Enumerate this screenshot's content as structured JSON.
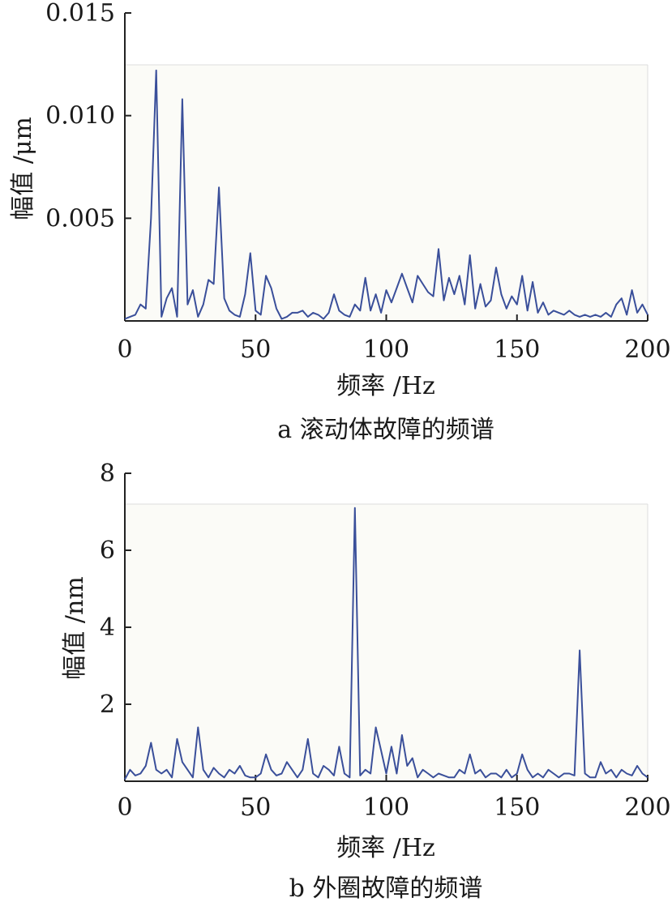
{
  "chart_data": [
    {
      "type": "line",
      "caption": "a 滚动体故障的频谱",
      "xlabel": "频率 /Hz",
      "ylabel": "幅值 /μm",
      "xlim": [
        0,
        200
      ],
      "ylim": [
        0,
        0.015
      ],
      "xticks": [
        "0",
        "50",
        "100",
        "150",
        "200"
      ],
      "yticks": [
        "0.005",
        "0.010",
        "0.015"
      ],
      "y_tick_values": [
        0.005,
        0.01,
        0.015
      ],
      "x_tick_values": [
        0,
        50,
        100,
        150,
        200
      ],
      "grid": false,
      "line_color": "#3a4f9a",
      "series": [
        {
          "x": [
            0,
            2,
            4,
            6,
            8,
            10,
            12,
            14,
            16,
            18,
            20,
            22,
            24,
            26,
            28,
            30,
            32,
            34,
            36,
            38,
            40,
            42,
            44,
            46,
            48,
            50,
            52,
            54,
            56,
            58,
            60,
            62,
            64,
            66,
            68,
            70,
            72,
            74,
            76,
            78,
            80,
            82,
            84,
            86,
            88,
            90,
            92,
            94,
            96,
            98,
            100,
            102,
            104,
            106,
            108,
            110,
            112,
            114,
            116,
            118,
            120,
            122,
            124,
            126,
            128,
            130,
            132,
            134,
            136,
            138,
            140,
            142,
            144,
            146,
            148,
            150,
            152,
            154,
            156,
            158,
            160,
            162,
            164,
            166,
            168,
            170,
            172,
            174,
            176,
            178,
            180,
            182,
            184,
            186,
            188,
            190,
            192,
            194,
            196,
            198,
            200
          ],
          "values": [
            0.0001,
            0.0002,
            0.0003,
            0.0008,
            0.0006,
            0.005,
            0.0122,
            0.0002,
            0.0011,
            0.0016,
            0.0002,
            0.0108,
            0.0008,
            0.0015,
            0.0002,
            0.0008,
            0.002,
            0.0018,
            0.0065,
            0.0011,
            0.0005,
            0.0003,
            0.0002,
            0.0013,
            0.0033,
            0.0005,
            0.0003,
            0.0022,
            0.0016,
            0.0006,
            0.0001,
            0.0002,
            0.0004,
            0.0004,
            0.0005,
            0.0002,
            0.0004,
            0.0003,
            0.0001,
            0.0004,
            0.0013,
            0.0005,
            0.0003,
            0.0002,
            0.0008,
            0.0005,
            0.0021,
            0.0005,
            0.0013,
            0.0004,
            0.0015,
            0.0009,
            0.0016,
            0.0023,
            0.0016,
            0.0009,
            0.0022,
            0.0018,
            0.0014,
            0.0012,
            0.0035,
            0.001,
            0.0021,
            0.0013,
            0.0022,
            0.0008,
            0.0032,
            0.0006,
            0.0018,
            0.0007,
            0.001,
            0.0026,
            0.0013,
            0.0006,
            0.0012,
            0.0008,
            0.0022,
            0.0005,
            0.0019,
            0.0004,
            0.0009,
            0.0003,
            0.0005,
            0.0004,
            0.0003,
            0.0005,
            0.0003,
            0.0002,
            0.0003,
            0.0002,
            0.0003,
            0.0002,
            0.0004,
            0.0002,
            0.0008,
            0.0011,
            0.0003,
            0.0015,
            0.0004,
            0.0008,
            0.0003
          ]
        }
      ]
    },
    {
      "type": "line",
      "caption": "b 外圈故障的频谱",
      "xlabel": "频率 /Hz",
      "ylabel": "幅值 /nm",
      "xlim": [
        0,
        200
      ],
      "ylim": [
        0,
        8
      ],
      "xticks": [
        "0",
        "50",
        "100",
        "150",
        "200"
      ],
      "yticks": [
        "2",
        "4",
        "6",
        "8"
      ],
      "y_tick_values": [
        2,
        4,
        6,
        8
      ],
      "x_tick_values": [
        0,
        50,
        100,
        150,
        200
      ],
      "grid": false,
      "line_color": "#3a4f9a",
      "series": [
        {
          "x": [
            0,
            2,
            4,
            6,
            8,
            10,
            12,
            14,
            16,
            18,
            20,
            22,
            24,
            26,
            28,
            30,
            32,
            34,
            36,
            38,
            40,
            42,
            44,
            46,
            48,
            50,
            52,
            54,
            56,
            58,
            60,
            62,
            64,
            66,
            68,
            70,
            72,
            74,
            76,
            78,
            80,
            82,
            84,
            86,
            88,
            90,
            92,
            94,
            96,
            98,
            100,
            102,
            104,
            106,
            108,
            110,
            112,
            114,
            116,
            118,
            120,
            122,
            124,
            126,
            128,
            130,
            132,
            134,
            136,
            138,
            140,
            142,
            144,
            146,
            148,
            150,
            152,
            154,
            156,
            158,
            160,
            162,
            164,
            166,
            168,
            170,
            172,
            174,
            176,
            178,
            180,
            182,
            184,
            186,
            188,
            190,
            192,
            194,
            196,
            198,
            200
          ],
          "values": [
            0.05,
            0.3,
            0.15,
            0.2,
            0.4,
            1.0,
            0.3,
            0.2,
            0.3,
            0.1,
            1.1,
            0.5,
            0.3,
            0.1,
            1.4,
            0.3,
            0.1,
            0.35,
            0.2,
            0.1,
            0.3,
            0.2,
            0.4,
            0.15,
            0.1,
            0.1,
            0.2,
            0.7,
            0.3,
            0.15,
            0.2,
            0.5,
            0.3,
            0.1,
            0.3,
            1.1,
            0.2,
            0.1,
            0.4,
            0.3,
            0.15,
            0.9,
            0.2,
            0.1,
            7.1,
            0.15,
            0.3,
            0.2,
            1.4,
            0.8,
            0.2,
            0.9,
            0.2,
            1.2,
            0.4,
            0.6,
            0.1,
            0.3,
            0.2,
            0.1,
            0.2,
            0.15,
            0.1,
            0.1,
            0.3,
            0.2,
            0.7,
            0.2,
            0.3,
            0.1,
            0.2,
            0.2,
            0.1,
            0.3,
            0.1,
            0.2,
            0.7,
            0.3,
            0.1,
            0.2,
            0.1,
            0.3,
            0.2,
            0.1,
            0.2,
            0.2,
            0.15,
            3.4,
            0.2,
            0.1,
            0.1,
            0.5,
            0.2,
            0.3,
            0.1,
            0.3,
            0.2,
            0.15,
            0.4,
            0.2,
            0.1
          ]
        }
      ]
    }
  ]
}
